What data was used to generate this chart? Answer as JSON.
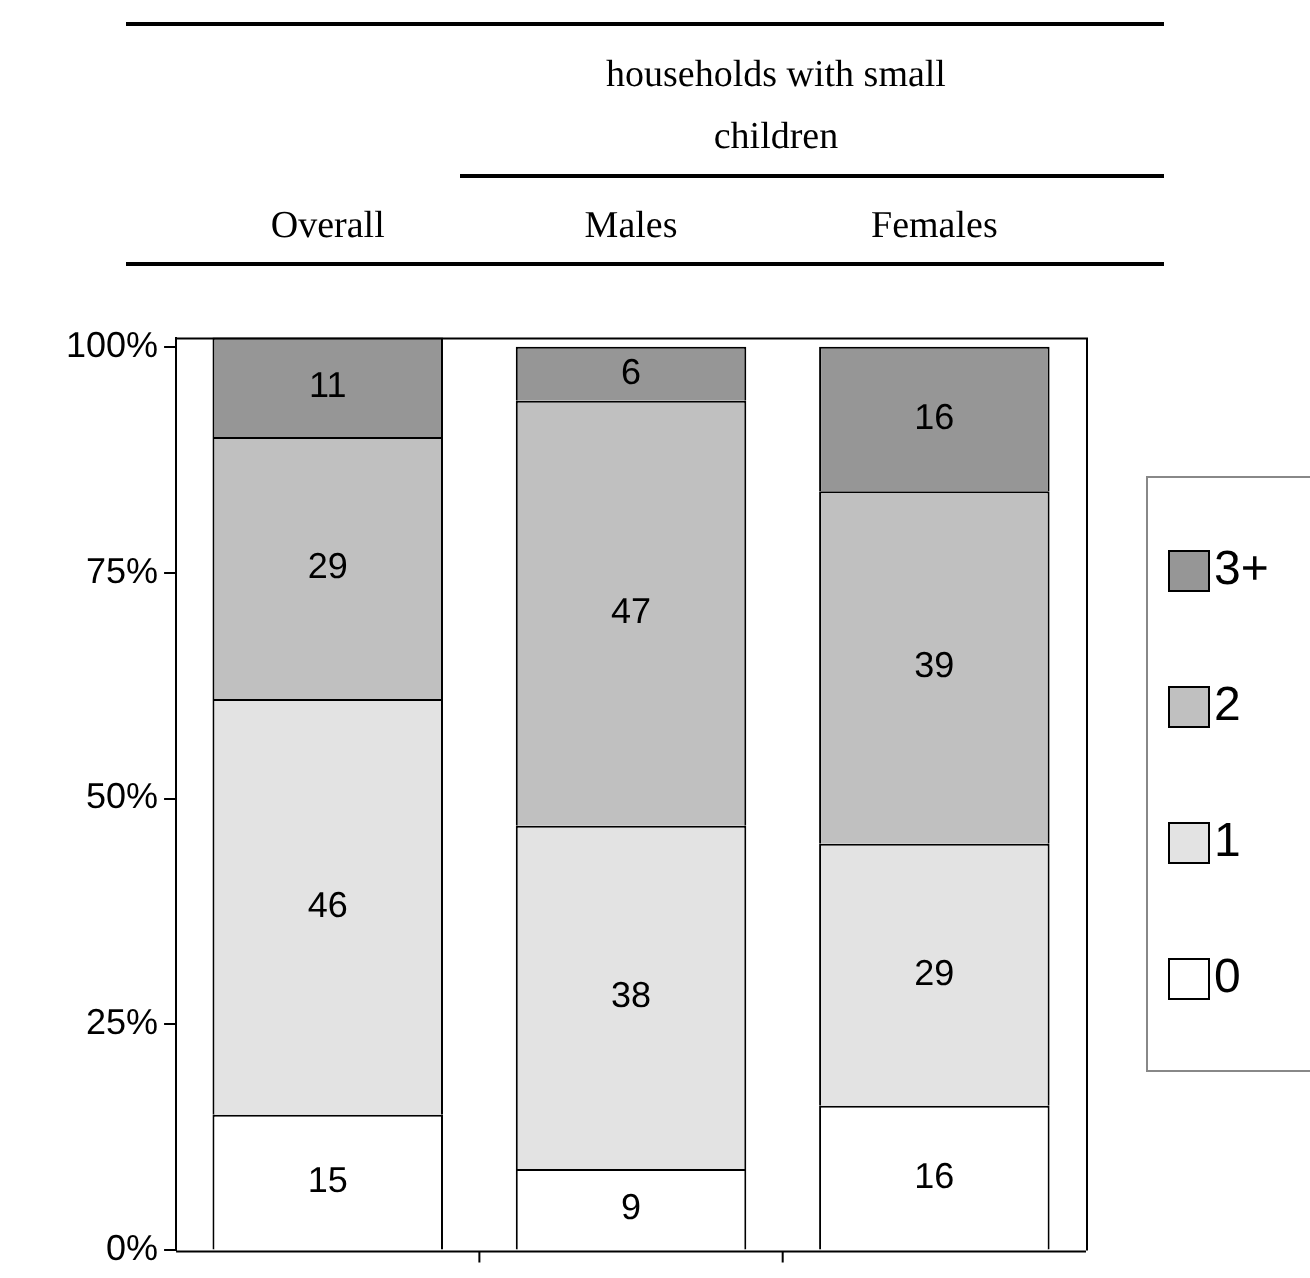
{
  "chart_data": {
    "type": "bar",
    "stacked": true,
    "annotations": [
      "households with small children"
    ],
    "categories": [
      "Overall",
      "Males",
      "Females"
    ],
    "series": [
      {
        "name": "0",
        "color": "#ffffff",
        "values": [
          15,
          9,
          16
        ]
      },
      {
        "name": "1",
        "color": "#e3e3e3",
        "values": [
          46,
          38,
          29
        ]
      },
      {
        "name": "2",
        "color": "#c0c0c0",
        "values": [
          29,
          47,
          39
        ]
      },
      {
        "name": "3+",
        "color": "#969696",
        "values": [
          11,
          6,
          16
        ]
      }
    ],
    "ylim": [
      0,
      101
    ],
    "yticks": [
      {
        "value": 0,
        "label": "0%"
      },
      {
        "value": 25,
        "label": "25%"
      },
      {
        "value": 50,
        "label": "50%"
      },
      {
        "value": 75,
        "label": "75%"
      },
      {
        "value": 100,
        "label": "100%"
      }
    ],
    "grid": false,
    "legend": "right",
    "data_labels": true
  }
}
